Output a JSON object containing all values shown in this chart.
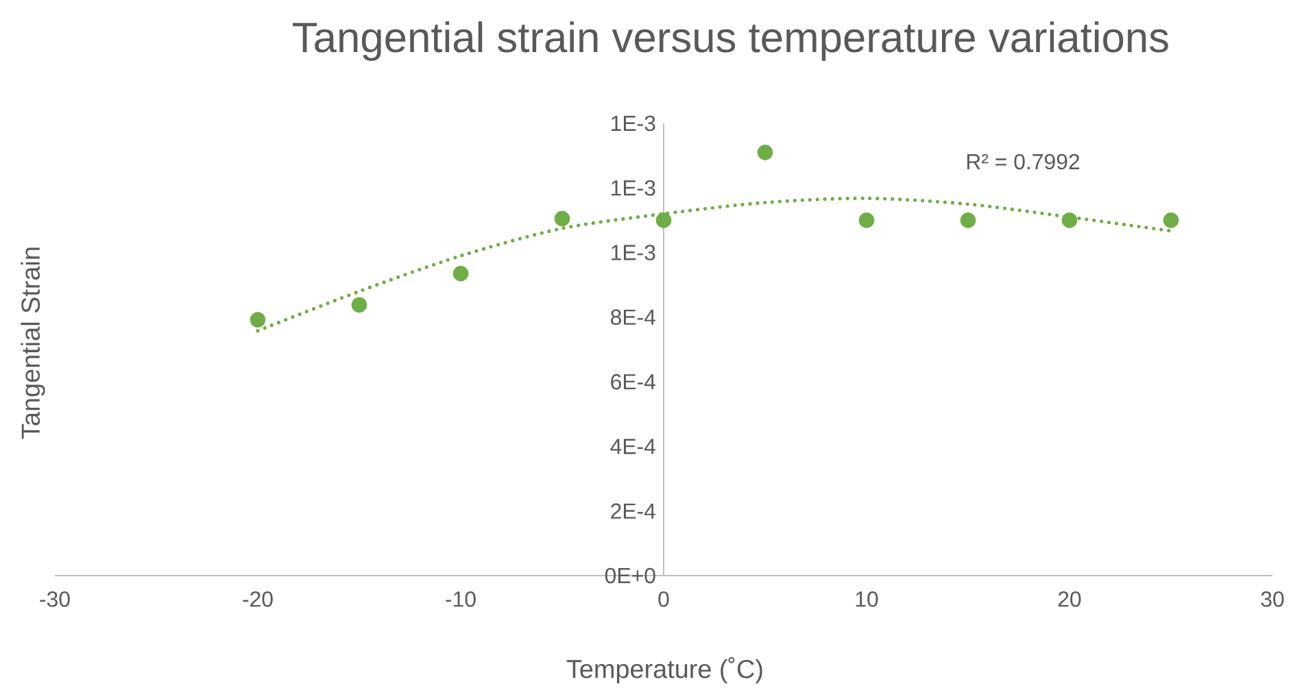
{
  "chart_data": {
    "type": "scatter",
    "title": "Tangential strain versus temperature variations",
    "xlabel": "Temperature (˚C)",
    "ylabel": "Tangential Strain",
    "xlim": [
      -30,
      30
    ],
    "xticks": [
      -30,
      -20,
      -10,
      0,
      10,
      20,
      30
    ],
    "ylim": [
      0,
      0.0014
    ],
    "yticks": [
      {
        "value": 0,
        "label": "0E+0"
      },
      {
        "value": 0.0002,
        "label": "2E-4"
      },
      {
        "value": 0.0004,
        "label": "4E-4"
      },
      {
        "value": 0.0006,
        "label": "6E-4"
      },
      {
        "value": 0.0008,
        "label": "8E-4"
      },
      {
        "value": 0.001,
        "label": "1E-3"
      },
      {
        "value": 0.0012,
        "label": "1E-3"
      },
      {
        "value": 0.0014,
        "label": "1E-3"
      }
    ],
    "grid": false,
    "series": [
      {
        "marker": "circle",
        "color": "#70ad47",
        "x": [
          -20,
          -15,
          -10,
          -5,
          0,
          5,
          10,
          15,
          20,
          25
        ],
        "values": [
          0.000792,
          0.000838,
          0.000935,
          0.001105,
          0.0011,
          0.00131,
          0.0011,
          0.0011,
          0.0011,
          0.0011
        ]
      },
      {
        "type": "line",
        "marker": "none",
        "line_style": "dotted",
        "color": "#70ad47",
        "x": [
          -20,
          -15,
          -10,
          -5,
          0,
          5,
          10,
          15,
          20,
          25
        ],
        "values": [
          0.000758,
          0.00088,
          0.00099,
          0.001075,
          0.00112,
          0.001155,
          0.001168,
          0.00115,
          0.00111,
          0.001067
        ]
      }
    ],
    "annotations": [
      "R² = 0.7992"
    ]
  }
}
